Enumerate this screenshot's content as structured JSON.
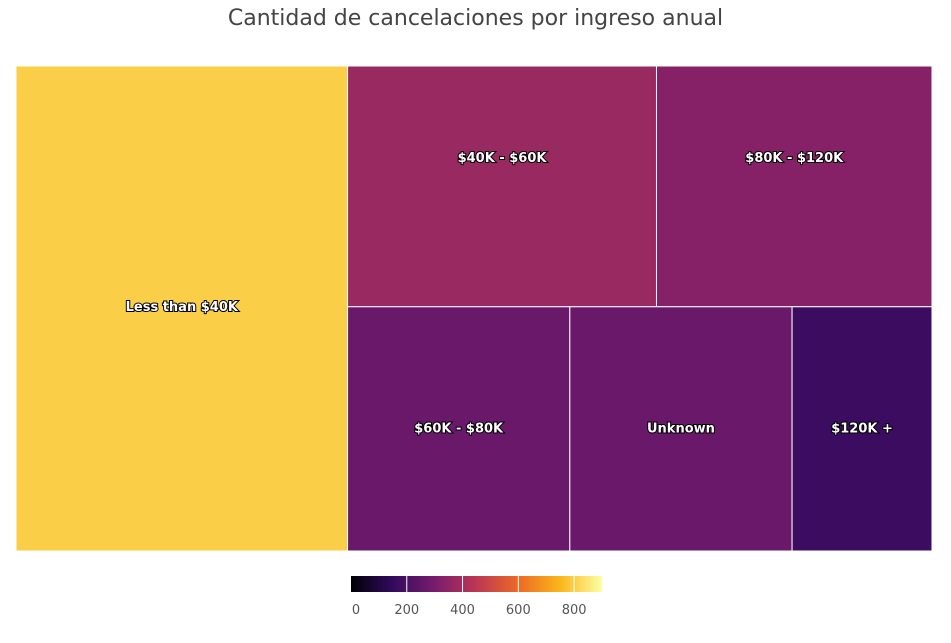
{
  "chart_data": {
    "type": "treemap",
    "title": "Cantidad de cancelaciones por ingreso anual",
    "tiles": [
      {
        "label": "Less than $40K",
        "value": 800
      },
      {
        "label": "$40K - $60K",
        "value": 370
      },
      {
        "label": "$80K - $120K",
        "value": 330
      },
      {
        "label": "$60K - $80K",
        "value": 270
      },
      {
        "label": "Unknown",
        "value": 270
      },
      {
        "label": "$120K +",
        "value": 170
      }
    ],
    "colorbar": {
      "ticks": [
        0,
        200,
        400,
        600,
        800
      ],
      "range": [
        0,
        900
      ],
      "colorscale": [
        "#000004",
        "#320a5e",
        "#781c6d",
        "#bc3754",
        "#ed6925",
        "#fbb61a",
        "#fcffa4"
      ]
    }
  }
}
